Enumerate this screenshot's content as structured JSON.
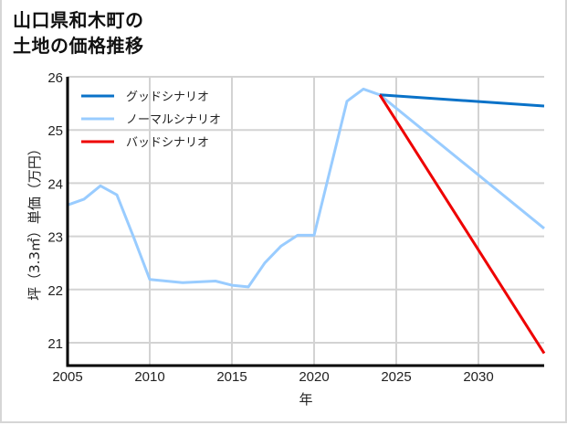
{
  "title_line1": "山口県和木町の",
  "title_line2": "土地の価格推移",
  "chart_data": {
    "type": "line",
    "title": "山口県和木町の土地の価格推移",
    "xlabel": "年",
    "ylabel": "坪（3.3㎡）単価（万円）",
    "xlim": [
      2005,
      2034
    ],
    "ylim": [
      20.6,
      26
    ],
    "xticks": [
      2005,
      2010,
      2015,
      2020,
      2025,
      2030
    ],
    "yticks": [
      21,
      22,
      23,
      24,
      25,
      26
    ],
    "grid": true,
    "legend_position": "upper left",
    "series": [
      {
        "name": "グッドシナリオ",
        "color": "#0a72c8",
        "x": [
          2024,
          2034
        ],
        "y": [
          25.66,
          25.45
        ]
      },
      {
        "name": "ノーマルシナリオ",
        "color": "#99ccff",
        "x": [
          2005,
          2006,
          2007,
          2008,
          2009,
          2010,
          2012,
          2014,
          2015,
          2016,
          2017,
          2018,
          2019,
          2020,
          2022,
          2023,
          2024,
          2034
        ],
        "y": [
          23.59,
          23.7,
          23.95,
          23.78,
          23.0,
          22.19,
          22.13,
          22.16,
          22.08,
          22.05,
          22.5,
          22.82,
          23.02,
          23.02,
          25.54,
          25.77,
          25.66,
          23.15
        ]
      },
      {
        "name": "バッドシナリオ",
        "color": "#ee0000",
        "x": [
          2024,
          2034
        ],
        "y": [
          25.66,
          20.8
        ]
      }
    ]
  }
}
